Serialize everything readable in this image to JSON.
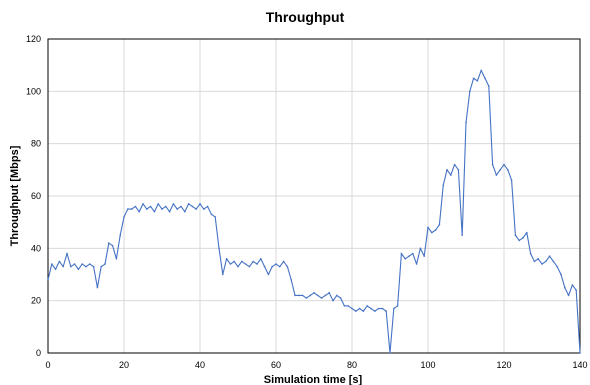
{
  "chart_data": {
    "type": "line",
    "title": "Throughput",
    "xlabel": "Simulation time [s]",
    "ylabel": "Throughput [Mbps]",
    "xlim": [
      0,
      140
    ],
    "ylim": [
      0,
      120
    ],
    "xticks": [
      0,
      20,
      40,
      60,
      80,
      100,
      120,
      140
    ],
    "yticks": [
      0,
      20,
      40,
      60,
      80,
      100,
      120
    ],
    "grid": true,
    "legend": "none",
    "series_color": "#4472C4",
    "series": [
      {
        "x": [
          0,
          1,
          2,
          3,
          4,
          5,
          6,
          7,
          8,
          9,
          10,
          11,
          12,
          13,
          14,
          15,
          16,
          17,
          18,
          19,
          20,
          21,
          22,
          23,
          24,
          25,
          26,
          27,
          28,
          29,
          30,
          31,
          32,
          33,
          34,
          35,
          36,
          37,
          38,
          39,
          40,
          41,
          42,
          43,
          44,
          45,
          46,
          47,
          48,
          49,
          50,
          51,
          52,
          53,
          54,
          55,
          56,
          57,
          58,
          59,
          60,
          61,
          62,
          63,
          64,
          65,
          66,
          67,
          68,
          69,
          70,
          71,
          72,
          73,
          74,
          75,
          76,
          77,
          78,
          79,
          80,
          81,
          82,
          83,
          84,
          85,
          86,
          87,
          88,
          89,
          90,
          91,
          92,
          93,
          94,
          95,
          96,
          97,
          98,
          99,
          100,
          101,
          102,
          103,
          104,
          105,
          106,
          107,
          108,
          109,
          110,
          111,
          112,
          113,
          114,
          115,
          116,
          117,
          118,
          119,
          120,
          121,
          122,
          123,
          124,
          125,
          126,
          127,
          128,
          129,
          130,
          131,
          132,
          133,
          134,
          135,
          136,
          137,
          138,
          139,
          140
        ],
        "values": [
          28,
          34,
          32,
          35,
          33,
          38,
          33,
          34,
          32,
          34,
          33,
          34,
          33,
          25,
          33,
          34,
          42,
          41,
          36,
          45,
          52,
          55,
          55,
          56,
          54,
          57,
          55,
          56,
          54,
          57,
          55,
          56,
          54,
          57,
          55,
          56,
          54,
          57,
          56,
          55,
          57,
          55,
          56,
          53,
          52,
          40,
          30,
          36,
          34,
          35,
          33,
          35,
          34,
          33,
          35,
          34,
          36,
          33,
          30,
          33,
          34,
          33,
          35,
          33,
          28,
          22,
          22,
          22,
          21,
          22,
          23,
          22,
          21,
          22,
          23,
          20,
          22,
          21,
          18,
          18,
          17,
          16,
          17,
          16,
          18,
          17,
          16,
          17,
          17,
          16,
          0,
          17,
          18,
          38,
          36,
          37,
          38,
          34,
          40,
          37,
          48,
          46,
          47,
          49,
          64,
          70,
          68,
          72,
          70,
          45,
          88,
          100,
          105,
          104,
          108,
          105,
          102,
          72,
          68,
          70,
          72,
          70,
          66,
          45,
          43,
          44,
          46,
          38,
          35,
          36,
          34,
          35,
          37,
          35,
          33,
          30,
          25,
          22,
          26,
          24,
          0
        ]
      }
    ]
  }
}
